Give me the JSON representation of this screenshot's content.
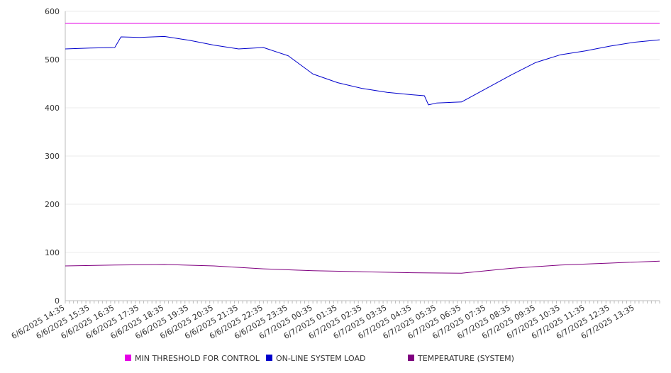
{
  "chart_data": {
    "type": "line",
    "y_ticks": [
      0,
      100,
      200,
      300,
      400,
      500,
      600
    ],
    "ylim": [
      0,
      600
    ],
    "grid": true,
    "legend_position": "bottom",
    "x_tick_labels": [
      "6/6/2025 14:35",
      "6/6/2025 15:35",
      "6/6/2025 16:35",
      "6/6/2025 17:35",
      "6/6/2025 18:35",
      "6/6/2025 19:35",
      "6/6/2025 20:35",
      "6/6/2025 21:35",
      "6/6/2025 22:35",
      "6/6/2025 23:35",
      "6/7/2025 00:35",
      "6/7/2025 01:35",
      "6/7/2025 02:35",
      "6/7/2025 03:35",
      "6/7/2025 04:35",
      "6/7/2025 05:35",
      "6/7/2025 06:35",
      "6/7/2025 07:35",
      "6/7/2025 08:35",
      "6/7/2025 09:35",
      "6/7/2025 10:35",
      "6/7/2025 11:35",
      "6/7/2025 12:35",
      "6/7/2025 13:35"
    ],
    "x_range": [
      "6/6/2025 14:35",
      "6/7/2025 14:35"
    ],
    "series": [
      {
        "name": "MIN THRESHOLD FOR CONTROL",
        "color": "#e600e6",
        "points": [
          [
            "6/6/2025 14:35",
            575
          ],
          [
            "6/7/2025 14:35",
            575
          ]
        ]
      },
      {
        "name": "ON-LINE SYSTEM LOAD",
        "color": "#0000cc",
        "points": [
          [
            "6/6/2025 14:35",
            522
          ],
          [
            "6/6/2025 15:35",
            524
          ],
          [
            "6/6/2025 16:35",
            525
          ],
          [
            "6/6/2025 16:50",
            547
          ],
          [
            "6/6/2025 17:35",
            546
          ],
          [
            "6/6/2025 18:35",
            548
          ],
          [
            "6/6/2025 19:35",
            540
          ],
          [
            "6/6/2025 20:35",
            530
          ],
          [
            "6/6/2025 21:35",
            522
          ],
          [
            "6/6/2025 22:35",
            525
          ],
          [
            "6/6/2025 23:35",
            508
          ],
          [
            "6/7/2025 00:35",
            470
          ],
          [
            "6/7/2025 01:35",
            452
          ],
          [
            "6/7/2025 02:35",
            440
          ],
          [
            "6/7/2025 03:35",
            432
          ],
          [
            "6/7/2025 04:35",
            427
          ],
          [
            "6/7/2025 05:05",
            425
          ],
          [
            "6/7/2025 05:15",
            406
          ],
          [
            "6/7/2025 05:35",
            410
          ],
          [
            "6/7/2025 06:35",
            412
          ],
          [
            "6/7/2025 07:35",
            440
          ],
          [
            "6/7/2025 08:35",
            468
          ],
          [
            "6/7/2025 09:35",
            494
          ],
          [
            "6/7/2025 10:35",
            510
          ],
          [
            "6/7/2025 11:35",
            518
          ],
          [
            "6/7/2025 12:35",
            528
          ],
          [
            "6/7/2025 13:35",
            536
          ],
          [
            "6/7/2025 14:35",
            541
          ]
        ]
      },
      {
        "name": "TEMPERATURE (SYSTEM)",
        "color": "#800080",
        "points": [
          [
            "6/6/2025 14:35",
            72
          ],
          [
            "6/6/2025 16:35",
            74
          ],
          [
            "6/6/2025 18:35",
            75
          ],
          [
            "6/6/2025 20:35",
            72
          ],
          [
            "6/6/2025 22:35",
            66
          ],
          [
            "6/7/2025 00:35",
            62
          ],
          [
            "6/7/2025 02:35",
            60
          ],
          [
            "6/7/2025 04:35",
            58
          ],
          [
            "6/7/2025 06:35",
            57
          ],
          [
            "6/7/2025 08:35",
            67
          ],
          [
            "6/7/2025 10:35",
            74
          ],
          [
            "6/7/2025 12:35",
            78
          ],
          [
            "6/7/2025 14:35",
            82
          ]
        ]
      }
    ]
  }
}
